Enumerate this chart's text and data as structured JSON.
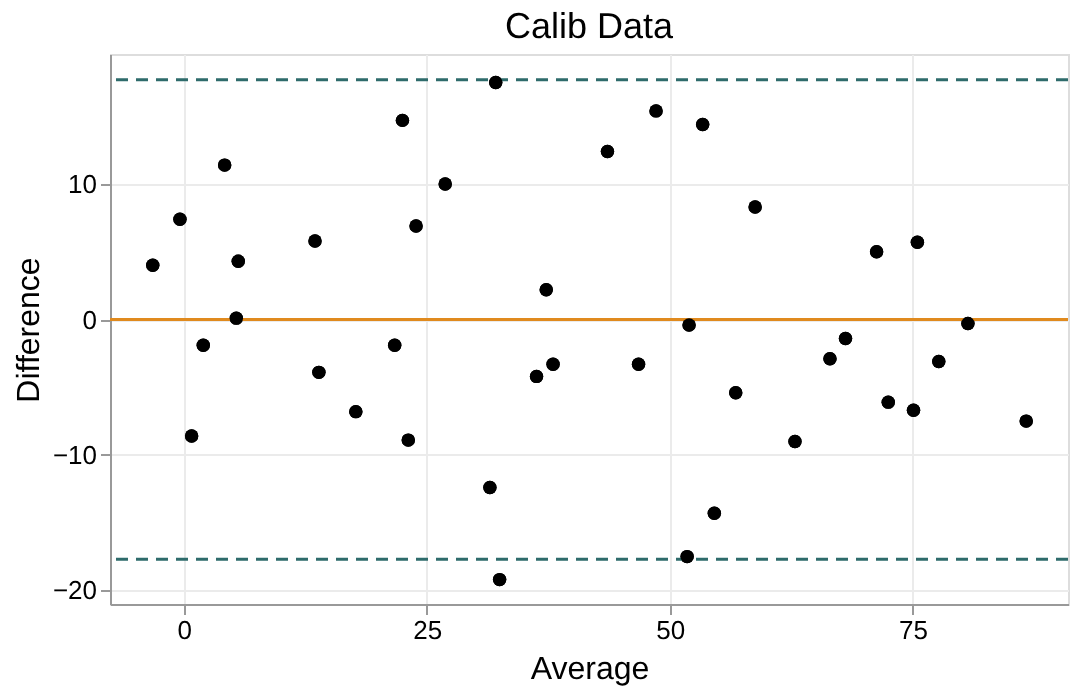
{
  "chart_data": {
    "type": "scatter",
    "title": "Calib Data",
    "xlabel": "Average",
    "ylabel": "Difference",
    "x": [
      -3.2,
      -0.4,
      0.8,
      2.0,
      4.2,
      5.6,
      5.4,
      13.5,
      13.9,
      17.7,
      21.7,
      22.5,
      23.1,
      23.9,
      26.9,
      31.5,
      32.1,
      32.5,
      36.3,
      37.3,
      38.0,
      43.6,
      46.8,
      48.6,
      51.8,
      52.0,
      53.4,
      54.6,
      56.8,
      58.8,
      62.9,
      66.5,
      68.1,
      71.3,
      72.5,
      75.5,
      75.1,
      77.7,
      80.7,
      86.7
    ],
    "series": [
      {
        "color": "#000000",
        "values": [
          4.0,
          7.4,
          -8.6,
          -1.9,
          11.4,
          4.3,
          0.1,
          5.8,
          -3.9,
          -6.8,
          -1.9,
          14.7,
          -8.9,
          6.9,
          10.0,
          -12.4,
          17.5,
          -19.2,
          -4.2,
          2.2,
          -3.3,
          12.4,
          -3.3,
          15.4,
          -17.5,
          -0.4,
          14.4,
          -14.3,
          -5.4,
          8.3,
          -9.0,
          -2.9,
          -1.4,
          5.0,
          -6.1,
          5.7,
          -6.7,
          -3.1,
          -0.3,
          -7.5
        ]
      }
    ],
    "xlim": [
      -7.6,
      91
    ],
    "ylim": [
      -21,
      19.6
    ],
    "xticks": [
      0,
      25,
      50,
      75
    ],
    "yticks": [
      -20,
      -10,
      0,
      10
    ],
    "ref_lines": [
      {
        "axis": "y",
        "value": 0,
        "color": "#e08a1e",
        "line_style": "solid"
      },
      {
        "axis": "y",
        "value": 17.7,
        "color": "#2e6b6b",
        "line_style": "dashed"
      },
      {
        "axis": "y",
        "value": -17.7,
        "color": "#2e6b6b",
        "line_style": "dashed"
      }
    ],
    "grid": true,
    "marker": "circle"
  }
}
